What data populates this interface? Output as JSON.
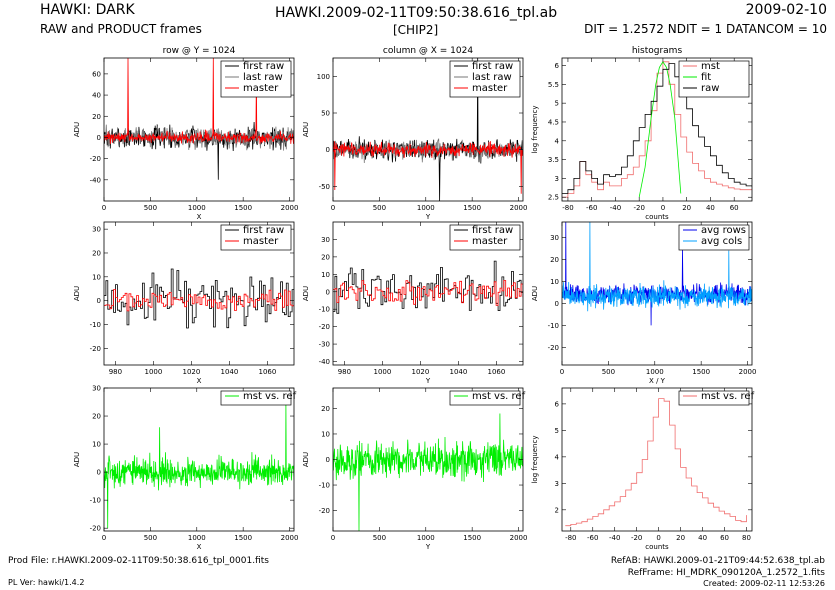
{
  "header": {
    "left_title": "HAWKI: DARK",
    "left_subtitle": "RAW and PRODUCT frames",
    "center_title": "HAWKI.2009-02-11T09:50:38.616_tpl.ab",
    "center_subtitle": "[CHIP2]",
    "right_title": "2009-02-10",
    "right_subtitle": "DIT = 1.2572 NDIT = 1 DATANCOM = 10"
  },
  "footer": {
    "prod_file": "Prod File: r.HAWKI.2009-02-11T09:50:38.616_tpl_0001.fits",
    "pl_ver": "PL Ver: hawki/1.4.2",
    "ref_ab": "RefAB: HAWKI.2009-01-21T09:44:52.638_tpl.ab",
    "ref_frame": "RefFrame: HI_MDRK_090120A_1.2572_1.fits",
    "created": "Created: 2009-02-11 12:53:26"
  },
  "colors": {
    "black": "#000000",
    "gray": "#777777",
    "red": "#ff0000",
    "salmon": "#f06e6e",
    "blue": "#0000ee",
    "lightblue": "#00a0ff",
    "green": "#00ee00"
  },
  "chart_data": [
    {
      "id": "p1",
      "type": "line",
      "title": "row @ Y = 1024",
      "xlabel": "X",
      "ylabel": "ADU",
      "xlim": [
        0,
        2048
      ],
      "ylim": [
        -60,
        75
      ],
      "xticks": [
        0,
        500,
        1000,
        1500,
        2000
      ],
      "yticks": [
        -40,
        -20,
        0,
        20,
        40,
        60
      ],
      "legend_position": "top-right",
      "series": [
        {
          "name": "first raw",
          "color": "#000000",
          "kind": "noise",
          "n": 420,
          "mean": 0,
          "amp": 10,
          "spikes": [
            [
              1230,
              -40
            ]
          ]
        },
        {
          "name": "last raw",
          "color": "#777777",
          "kind": "noise",
          "n": 420,
          "mean": 0,
          "amp": 9,
          "spikes": []
        },
        {
          "name": "master",
          "color": "#ff0000",
          "kind": "noise",
          "n": 420,
          "mean": 0,
          "amp": 5,
          "spikes": [
            [
              260,
              75
            ],
            [
              1180,
              75
            ],
            [
              1640,
              58
            ]
          ]
        }
      ]
    },
    {
      "id": "p2",
      "type": "line",
      "title": "column @ X = 1024",
      "xlabel": "Y",
      "ylabel": "ADU",
      "xlim": [
        0,
        2048
      ],
      "ylim": [
        -70,
        125
      ],
      "xticks": [
        0,
        500,
        1000,
        1500,
        2000
      ],
      "yticks": [
        -50,
        0,
        50,
        100
      ],
      "legend_position": "top-right",
      "series": [
        {
          "name": "first raw",
          "color": "#000000",
          "kind": "noise",
          "n": 420,
          "mean": 0,
          "amp": 14,
          "spikes": [
            [
              1150,
              -70
            ],
            [
              1560,
              125
            ]
          ]
        },
        {
          "name": "last raw",
          "color": "#777777",
          "kind": "noise",
          "n": 420,
          "mean": 0,
          "amp": 12,
          "spikes": []
        },
        {
          "name": "master",
          "color": "#ff0000",
          "kind": "noise",
          "n": 420,
          "mean": 0,
          "amp": 9,
          "spikes": [
            [
              20,
              -55
            ],
            [
              2030,
              -60
            ]
          ]
        }
      ]
    },
    {
      "id": "p3",
      "type": "line",
      "title": "histograms",
      "xlabel": "counts",
      "ylabel": "log frequency",
      "xlim": [
        -85,
        75
      ],
      "ylim": [
        2.4,
        6.2
      ],
      "xticks": [
        -80,
        -60,
        -40,
        -20,
        0,
        20,
        40,
        60
      ],
      "yticks": [
        2.5,
        3,
        3.5,
        4,
        4.5,
        5,
        5.5,
        6
      ],
      "legend_position": "top-right",
      "series": [
        {
          "name": "mst",
          "color": "#f06e6e",
          "kind": "step",
          "x": [
            -85,
            -80,
            -75,
            -70,
            -65,
            -60,
            -55,
            -50,
            -45,
            -40,
            -35,
            -30,
            -25,
            -20,
            -15,
            -10,
            -5,
            0,
            5,
            10,
            15,
            20,
            25,
            30,
            35,
            40,
            45,
            50,
            55,
            60,
            65,
            70,
            75
          ],
          "y": [
            2.5,
            2.6,
            2.8,
            3.45,
            3.1,
            2.9,
            2.7,
            2.9,
            2.8,
            2.8,
            3.0,
            3.1,
            3.3,
            3.6,
            4.0,
            4.8,
            5.8,
            6.1,
            5.5,
            4.7,
            4.1,
            3.7,
            3.4,
            3.2,
            3.0,
            2.9,
            2.85,
            2.8,
            2.75,
            2.72,
            2.7,
            2.7,
            2.7
          ]
        },
        {
          "name": "fit",
          "color": "#00ee00",
          "kind": "line",
          "x": [
            -20,
            -15,
            -10,
            -6,
            -3,
            0,
            3,
            6,
            10,
            15
          ],
          "y": [
            2.5,
            3.3,
            4.6,
            5.5,
            5.95,
            6.1,
            5.95,
            5.5,
            4.6,
            2.6
          ]
        },
        {
          "name": "raw",
          "color": "#000000",
          "kind": "step",
          "x": [
            -85,
            -80,
            -75,
            -70,
            -65,
            -60,
            -55,
            -50,
            -45,
            -40,
            -35,
            -30,
            -25,
            -20,
            -15,
            -10,
            -5,
            0,
            5,
            10,
            15,
            20,
            25,
            30,
            35,
            40,
            45,
            50,
            55,
            60,
            65,
            70,
            75
          ],
          "y": [
            2.6,
            2.7,
            3.0,
            3.45,
            3.2,
            3.0,
            2.85,
            3.1,
            3.05,
            3.1,
            3.3,
            3.6,
            4.0,
            4.35,
            4.7,
            5.05,
            5.45,
            5.9,
            6.05,
            5.7,
            5.3,
            4.85,
            4.4,
            4.1,
            3.85,
            3.6,
            3.35,
            3.15,
            3.0,
            2.9,
            2.85,
            2.8,
            2.78
          ]
        }
      ]
    },
    {
      "id": "p4",
      "type": "line",
      "title": "",
      "xlabel": "X",
      "ylabel": "ADU",
      "xlim": [
        974,
        1074
      ],
      "ylim": [
        -27,
        33
      ],
      "xticks": [
        980,
        1000,
        1020,
        1040,
        1060
      ],
      "yticks": [
        -20,
        -10,
        0,
        10,
        20,
        30
      ],
      "legend_position": "top-right",
      "series": [
        {
          "name": "first raw",
          "color": "#000000",
          "kind": "stepnoise",
          "n": 100,
          "mean": 0,
          "amp": 11,
          "spikes": []
        },
        {
          "name": "master",
          "color": "#ff0000",
          "kind": "stepnoise",
          "n": 100,
          "mean": 0,
          "amp": 4,
          "spikes": []
        }
      ]
    },
    {
      "id": "p5",
      "type": "line",
      "title": "",
      "xlabel": "Y",
      "ylabel": "ADU",
      "xlim": [
        974,
        1074
      ],
      "ylim": [
        -42,
        40
      ],
      "xticks": [
        980,
        1000,
        1020,
        1040,
        1060
      ],
      "yticks": [
        -40,
        -30,
        -20,
        -10,
        0,
        10,
        20,
        30
      ],
      "legend_position": "top-right",
      "series": [
        {
          "name": "first raw",
          "color": "#000000",
          "kind": "stepnoise",
          "n": 100,
          "mean": 0,
          "amp": 14,
          "spikes": []
        },
        {
          "name": "master",
          "color": "#ff0000",
          "kind": "stepnoise",
          "n": 100,
          "mean": 0,
          "amp": 6,
          "spikes": []
        }
      ]
    },
    {
      "id": "p6",
      "type": "line",
      "title": "",
      "xlabel": "X / Y",
      "ylabel": "ADU",
      "xlim": [
        0,
        2048
      ],
      "ylim": [
        -28,
        37
      ],
      "xticks": [
        0,
        500,
        1000,
        1500,
        2000
      ],
      "yticks": [
        -20,
        -10,
        0,
        10,
        20,
        30
      ],
      "legend_position": "top-right",
      "series": [
        {
          "name": "avg rows",
          "color": "#0000ee",
          "kind": "noise",
          "n": 600,
          "mean": 4,
          "amp": 4,
          "spikes": [
            [
              40,
              37
            ],
            [
              1300,
              25
            ],
            [
              960,
              -10
            ]
          ]
        },
        {
          "name": "avg cols",
          "color": "#00a0ff",
          "kind": "noise",
          "n": 600,
          "mean": 3,
          "amp": 5,
          "spikes": [
            [
              300,
              37
            ],
            [
              1800,
              24
            ]
          ]
        }
      ]
    },
    {
      "id": "p7",
      "type": "line",
      "title": "",
      "xlabel": "X",
      "ylabel": "ADU",
      "xlim": [
        0,
        2048
      ],
      "ylim": [
        -21,
        30
      ],
      "xticks": [
        0,
        500,
        1000,
        1500,
        2000
      ],
      "yticks": [
        -20,
        -10,
        0,
        10,
        20,
        30
      ],
      "legend_position": "top-right",
      "series": [
        {
          "name": "mst vs. ref",
          "color": "#00ee00",
          "kind": "noise",
          "n": 520,
          "mean": 0,
          "amp": 5,
          "spikes": [
            [
              1960,
              25
            ],
            [
              600,
              16
            ],
            [
              40,
              -20
            ]
          ]
        }
      ]
    },
    {
      "id": "p8",
      "type": "line",
      "title": "",
      "xlabel": "Y",
      "ylabel": "ADU",
      "xlim": [
        0,
        2048
      ],
      "ylim": [
        -28,
        28
      ],
      "xticks": [
        0,
        500,
        1000,
        1500,
        2000
      ],
      "yticks": [
        -20,
        -10,
        0,
        10,
        20
      ],
      "legend_position": "top-right",
      "series": [
        {
          "name": "mst vs. ref",
          "color": "#00ee00",
          "kind": "noise",
          "n": 520,
          "mean": 0,
          "amp": 7,
          "spikes": [
            [
              280,
              -28
            ],
            [
              1800,
              18
            ]
          ]
        }
      ]
    },
    {
      "id": "p9",
      "type": "line",
      "title": "",
      "xlabel": "counts",
      "ylabel": "log frequency",
      "xlim": [
        -88,
        85
      ],
      "ylim": [
        1.2,
        6.6
      ],
      "xticks": [
        -80,
        -60,
        -40,
        -20,
        0,
        20,
        40,
        60,
        80
      ],
      "yticks": [
        2,
        3,
        4,
        5,
        6
      ],
      "legend_position": "top-right",
      "series": [
        {
          "name": "mst vs. ref",
          "color": "#f06e6e",
          "kind": "step",
          "x": [
            -85,
            -80,
            -75,
            -70,
            -65,
            -60,
            -55,
            -50,
            -45,
            -40,
            -35,
            -30,
            -25,
            -20,
            -15,
            -10,
            -5,
            0,
            5,
            10,
            15,
            20,
            25,
            30,
            35,
            40,
            45,
            50,
            55,
            60,
            65,
            70,
            75,
            80
          ],
          "y": [
            1.4,
            1.45,
            1.5,
            1.55,
            1.65,
            1.75,
            1.85,
            2.0,
            2.15,
            2.3,
            2.5,
            2.75,
            3.0,
            3.4,
            3.9,
            4.6,
            5.5,
            6.2,
            6.1,
            5.2,
            4.3,
            3.6,
            3.2,
            2.9,
            2.65,
            2.45,
            2.25,
            2.1,
            1.95,
            1.85,
            1.75,
            1.6,
            1.55,
            1.8
          ]
        }
      ]
    }
  ]
}
